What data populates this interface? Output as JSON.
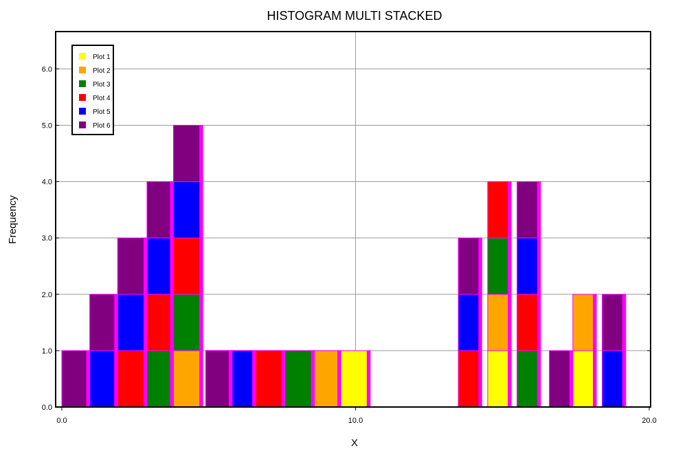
{
  "chart_data": {
    "type": "bar",
    "title": "HISTOGRAM MULTI STACKED",
    "xlabel": "X",
    "ylabel": "Frequency",
    "xlim": [
      0,
      20
    ],
    "ylim": [
      0,
      6.7
    ],
    "xticks": [
      {
        "value": 0,
        "label": "0.0"
      },
      {
        "value": 10,
        "label": "10.0"
      },
      {
        "value": 20,
        "label": "20.0"
      }
    ],
    "yticks": [
      {
        "value": 0,
        "label": "0.0"
      },
      {
        "value": 1,
        "label": "1.0"
      },
      {
        "value": 2,
        "label": "2.0"
      },
      {
        "value": 3,
        "label": "3.0"
      },
      {
        "value": 4,
        "label": "4.0"
      },
      {
        "value": 5,
        "label": "5.0"
      },
      {
        "value": 6,
        "label": "6.0"
      }
    ],
    "grid": true,
    "legend_position": "top-left",
    "bar_edge_color": "#ff00ff",
    "series": [
      {
        "name": "Plot 1",
        "color": "#ffff00",
        "bins": [
          {
            "x0": 4.9,
            "x1": 10.5,
            "count": 1
          },
          {
            "x0": 14.5,
            "x1": 15.3,
            "count": 1
          },
          {
            "x0": 17.4,
            "x1": 18.2,
            "count": 1
          }
        ]
      },
      {
        "name": "Plot 2",
        "color": "#ffa500",
        "bins": [
          {
            "x0": 3.8,
            "x1": 4.8,
            "count": 1
          },
          {
            "x0": 4.9,
            "x1": 9.5,
            "count": 1
          },
          {
            "x0": 14.5,
            "x1": 15.3,
            "count": 1
          },
          {
            "x0": 17.4,
            "x1": 18.2,
            "count": 1
          }
        ]
      },
      {
        "name": "Plot 3",
        "color": "#008000",
        "bins": [
          {
            "x0": 2.9,
            "x1": 3.8,
            "count": 1
          },
          {
            "x0": 3.8,
            "x1": 4.8,
            "count": 1
          },
          {
            "x0": 4.9,
            "x1": 8.6,
            "count": 1
          },
          {
            "x0": 14.5,
            "x1": 15.3,
            "count": 1
          },
          {
            "x0": 15.5,
            "x1": 16.3,
            "count": 1
          }
        ]
      },
      {
        "name": "Plot 4",
        "color": "#ff0000",
        "bins": [
          {
            "x0": 1.9,
            "x1": 2.9,
            "count": 1
          },
          {
            "x0": 2.9,
            "x1": 3.8,
            "count": 1
          },
          {
            "x0": 3.8,
            "x1": 4.8,
            "count": 1
          },
          {
            "x0": 4.9,
            "x1": 7.6,
            "count": 1
          },
          {
            "x0": 13.5,
            "x1": 14.3,
            "count": 1
          },
          {
            "x0": 14.5,
            "x1": 15.3,
            "count": 1
          },
          {
            "x0": 15.5,
            "x1": 16.3,
            "count": 1
          }
        ]
      },
      {
        "name": "Plot 5",
        "color": "#0000ff",
        "bins": [
          {
            "x0": 0.95,
            "x1": 1.9,
            "count": 1
          },
          {
            "x0": 1.9,
            "x1": 2.9,
            "count": 1
          },
          {
            "x0": 2.9,
            "x1": 3.8,
            "count": 1
          },
          {
            "x0": 3.8,
            "x1": 4.8,
            "count": 1
          },
          {
            "x0": 4.9,
            "x1": 6.6,
            "count": 1
          },
          {
            "x0": 13.5,
            "x1": 14.3,
            "count": 1
          },
          {
            "x0": 15.5,
            "x1": 16.3,
            "count": 1
          },
          {
            "x0": 18.4,
            "x1": 19.2,
            "count": 1
          }
        ]
      },
      {
        "name": "Plot 6",
        "color": "#800080",
        "bins": [
          {
            "x0": 0.0,
            "x1": 0.95,
            "count": 1
          },
          {
            "x0": 0.95,
            "x1": 1.9,
            "count": 1
          },
          {
            "x0": 1.9,
            "x1": 2.9,
            "count": 1
          },
          {
            "x0": 2.9,
            "x1": 3.8,
            "count": 1
          },
          {
            "x0": 3.8,
            "x1": 4.8,
            "count": 1
          },
          {
            "x0": 4.9,
            "x1": 5.8,
            "count": 1
          },
          {
            "x0": 13.5,
            "x1": 14.3,
            "count": 1
          },
          {
            "x0": 15.5,
            "x1": 16.3,
            "count": 1
          },
          {
            "x0": 16.6,
            "x1": 17.4,
            "count": 1
          },
          {
            "x0": 18.4,
            "x1": 19.2,
            "count": 1
          }
        ]
      }
    ]
  }
}
